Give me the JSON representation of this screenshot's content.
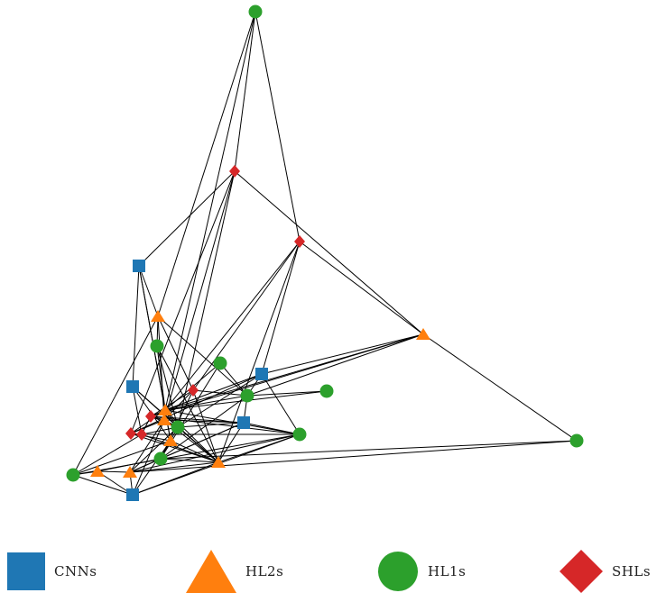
{
  "colors": {
    "CNN": "#1f77b4",
    "HL2": "#ff7f0e",
    "HL1": "#2ca02c",
    "SHL": "#d62728",
    "edge": "#000000"
  },
  "legend": [
    {
      "key": "CNN",
      "label": "CNNs",
      "shape": "square"
    },
    {
      "key": "HL2",
      "label": "HL2s",
      "shape": "triangle"
    },
    {
      "key": "HL1",
      "label": "HL1s",
      "shape": "circle"
    },
    {
      "key": "SHL",
      "label": "SHLs",
      "shape": "diamond"
    }
  ],
  "graph": {
    "nodes": [
      {
        "id": "n_top",
        "type": "HL1"
      },
      {
        "id": "n_shl1",
        "type": "SHL"
      },
      {
        "id": "n_shl2",
        "type": "SHL"
      },
      {
        "id": "n_cnn1",
        "type": "CNN"
      },
      {
        "id": "n_hl2a",
        "type": "HL2"
      },
      {
        "id": "n_hl1a",
        "type": "HL1"
      },
      {
        "id": "n_hl2right",
        "type": "HL2"
      },
      {
        "id": "n_hl1b",
        "type": "HL1"
      },
      {
        "id": "n_cnn2",
        "type": "CNN"
      },
      {
        "id": "n_cnn3",
        "type": "CNN"
      },
      {
        "id": "n_shl3",
        "type": "SHL"
      },
      {
        "id": "n_hl1c",
        "type": "HL1"
      },
      {
        "id": "n_hl1d",
        "type": "HL1"
      },
      {
        "id": "n_hl2b",
        "type": "HL2"
      },
      {
        "id": "n_shl4",
        "type": "SHL"
      },
      {
        "id": "n_cnn4",
        "type": "CNN"
      },
      {
        "id": "n_hl2c",
        "type": "HL2"
      },
      {
        "id": "n_hl1e",
        "type": "HL1"
      },
      {
        "id": "n_shl5",
        "type": "SHL"
      },
      {
        "id": "n_shl6",
        "type": "SHL"
      },
      {
        "id": "n_hl1f",
        "type": "HL1"
      },
      {
        "id": "n_hl2d",
        "type": "HL2"
      },
      {
        "id": "n_hl1g",
        "type": "HL1"
      },
      {
        "id": "n_hl2e",
        "type": "HL2"
      },
      {
        "id": "n_hl1left",
        "type": "HL1"
      },
      {
        "id": "n_hl2f",
        "type": "HL2"
      },
      {
        "id": "n_hl2g",
        "type": "HL2"
      },
      {
        "id": "n_cnn5",
        "type": "CNN"
      },
      {
        "id": "n_hl1right",
        "type": "HL1"
      }
    ],
    "edges": [
      [
        "n_top",
        "n_shl1"
      ],
      [
        "n_top",
        "n_shl2"
      ],
      [
        "n_top",
        "n_hl2a"
      ],
      [
        "n_top",
        "n_hl2b"
      ],
      [
        "n_shl1",
        "n_cnn1"
      ],
      [
        "n_shl1",
        "n_hl2right"
      ],
      [
        "n_shl1",
        "n_hl2c"
      ],
      [
        "n_shl1",
        "n_shl5"
      ],
      [
        "n_shl1",
        "n_hl1e"
      ],
      [
        "n_shl2",
        "n_hl2right"
      ],
      [
        "n_shl2",
        "n_cnn3"
      ],
      [
        "n_shl2",
        "n_shl3"
      ],
      [
        "n_shl2",
        "n_hl2b"
      ],
      [
        "n_shl2",
        "n_hl2e"
      ],
      [
        "n_cnn1",
        "n_hl2a"
      ],
      [
        "n_cnn1",
        "n_cnn2"
      ],
      [
        "n_cnn1",
        "n_hl2b"
      ],
      [
        "n_cnn1",
        "n_hl2d"
      ],
      [
        "n_hl2a",
        "n_shl3"
      ],
      [
        "n_hl2a",
        "n_hl1a"
      ],
      [
        "n_hl2a",
        "n_hl2c"
      ],
      [
        "n_hl2a",
        "n_hl1c"
      ],
      [
        "n_hl2a",
        "n_hl1left"
      ],
      [
        "n_hl1a",
        "n_hl2b"
      ],
      [
        "n_hl1a",
        "n_hl2e"
      ],
      [
        "n_hl1a",
        "n_hl1e"
      ],
      [
        "n_hl2right",
        "n_hl1right"
      ],
      [
        "n_hl2right",
        "n_cnn3"
      ],
      [
        "n_hl2right",
        "n_hl1c"
      ],
      [
        "n_hl2right",
        "n_hl2b"
      ],
      [
        "n_hl2right",
        "n_shl4"
      ],
      [
        "n_hl1b",
        "n_hl1g"
      ],
      [
        "n_hl1b",
        "n_hl2b"
      ],
      [
        "n_hl1b",
        "n_hl1c"
      ],
      [
        "n_cnn2",
        "n_hl2d"
      ],
      [
        "n_cnn2",
        "n_shl6"
      ],
      [
        "n_cnn2",
        "n_hl2e"
      ],
      [
        "n_cnn2",
        "n_hl1e"
      ],
      [
        "n_cnn3",
        "n_hl1c"
      ],
      [
        "n_cnn3",
        "n_hl2b"
      ],
      [
        "n_cnn3",
        "n_shl5"
      ],
      [
        "n_cnn3",
        "n_hl1e"
      ],
      [
        "n_cnn3",
        "n_hl1f"
      ],
      [
        "n_shl3",
        "n_hl1c"
      ],
      [
        "n_shl3",
        "n_hl2e"
      ],
      [
        "n_shl3",
        "n_shl4"
      ],
      [
        "n_shl3",
        "n_hl1g"
      ],
      [
        "n_shl3",
        "n_hl2c"
      ],
      [
        "n_hl1c",
        "n_hl1d"
      ],
      [
        "n_hl1c",
        "n_hl2b"
      ],
      [
        "n_hl1c",
        "n_cnn4"
      ],
      [
        "n_hl1c",
        "n_hl1g"
      ],
      [
        "n_hl1d",
        "n_hl2b"
      ],
      [
        "n_hl2b",
        "n_shl4"
      ],
      [
        "n_hl2b",
        "n_hl2e"
      ],
      [
        "n_hl2b",
        "n_hl1e"
      ],
      [
        "n_hl2b",
        "n_hl2c"
      ],
      [
        "n_hl2b",
        "n_hl2d"
      ],
      [
        "n_hl2b",
        "n_hl1f"
      ],
      [
        "n_hl2b",
        "n_shl5"
      ],
      [
        "n_shl4",
        "n_cnn4"
      ],
      [
        "n_shl4",
        "n_hl2c"
      ],
      [
        "n_shl4",
        "n_shl6"
      ],
      [
        "n_shl4",
        "n_hl1e"
      ],
      [
        "n_shl4",
        "n_hl1f"
      ],
      [
        "n_cnn4",
        "n_hl2c"
      ],
      [
        "n_cnn4",
        "n_hl1g"
      ],
      [
        "n_cnn4",
        "n_hl1e"
      ],
      [
        "n_cnn4",
        "n_hl2e"
      ],
      [
        "n_cnn4",
        "n_hl1f"
      ],
      [
        "n_cnn4",
        "n_hl2g"
      ],
      [
        "n_hl2c",
        "n_hl1e"
      ],
      [
        "n_hl2c",
        "n_shl5"
      ],
      [
        "n_hl2c",
        "n_hl2e"
      ],
      [
        "n_hl2c",
        "n_hl2g"
      ],
      [
        "n_hl2c",
        "n_cnn5"
      ],
      [
        "n_hl1e",
        "n_shl6"
      ],
      [
        "n_hl1e",
        "n_hl2e"
      ],
      [
        "n_hl1e",
        "n_hl1g"
      ],
      [
        "n_hl1e",
        "n_hl2g"
      ],
      [
        "n_shl5",
        "n_shl6"
      ],
      [
        "n_shl5",
        "n_hl2e"
      ],
      [
        "n_shl5",
        "n_hl2d"
      ],
      [
        "n_shl6",
        "n_hl1left"
      ],
      [
        "n_shl6",
        "n_hl2e"
      ],
      [
        "n_shl6",
        "n_hl1f"
      ],
      [
        "n_hl1f",
        "n_hl2e"
      ],
      [
        "n_hl1f",
        "n_hl1left"
      ],
      [
        "n_hl1f",
        "n_hl2g"
      ],
      [
        "n_hl1f",
        "n_cnn5"
      ],
      [
        "n_hl2d",
        "n_hl1left"
      ],
      [
        "n_hl2d",
        "n_cnn5"
      ],
      [
        "n_hl2d",
        "n_hl2e"
      ],
      [
        "n_hl2e",
        "n_hl1g"
      ],
      [
        "n_hl2e",
        "n_hl2g"
      ],
      [
        "n_hl2e",
        "n_cnn5"
      ],
      [
        "n_hl1g",
        "n_hl2g"
      ],
      [
        "n_hl1g",
        "n_hl1right"
      ],
      [
        "n_hl1g",
        "n_hl2f"
      ],
      [
        "n_hl2g",
        "n_hl1right"
      ],
      [
        "n_hl2g",
        "n_cnn5"
      ],
      [
        "n_hl2g",
        "n_hl2f"
      ],
      [
        "n_hl1left",
        "n_hl2f"
      ],
      [
        "n_hl1left",
        "n_cnn5"
      ],
      [
        "n_hl2f",
        "n_cnn5"
      ]
    ]
  }
}
